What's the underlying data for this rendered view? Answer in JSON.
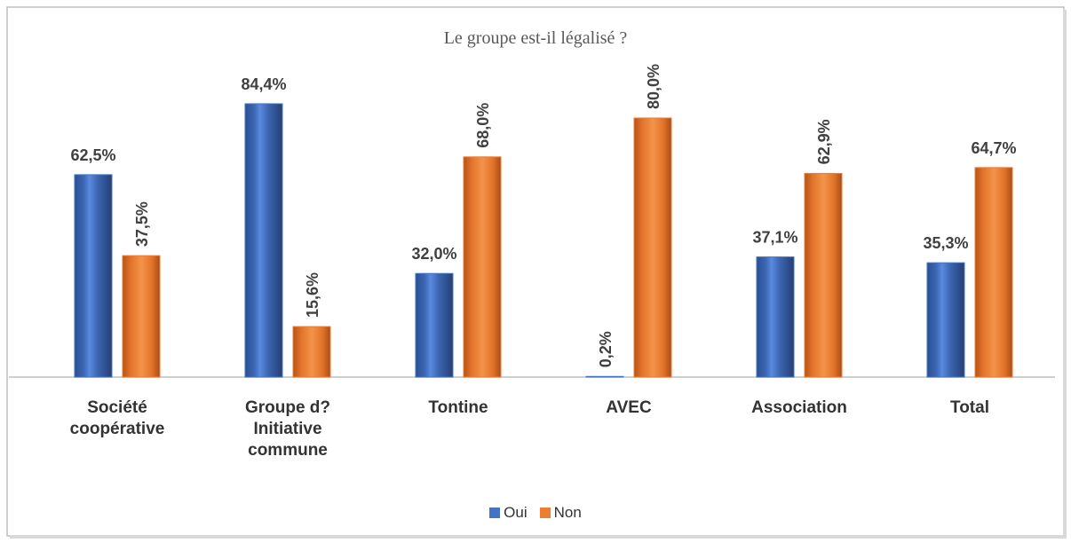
{
  "chart_data": {
    "type": "bar",
    "title": "Le groupe est-il légalisé ?",
    "categories": [
      "Société coopérative",
      "Groupe d?Initiative commune",
      "Tontine",
      "AVEC",
      "Association",
      "Total"
    ],
    "series": [
      {
        "name": "Oui",
        "color": "#4472c4",
        "values": [
          62.5,
          84.4,
          32.0,
          0.2,
          37.1,
          35.3
        ],
        "value_labels": [
          "62,5%",
          "84,4%",
          "32,0%",
          "0,2%",
          "37,1%",
          "35,3%"
        ]
      },
      {
        "name": "Non",
        "color": "#ed7d31",
        "values": [
          37.5,
          15.6,
          68.0,
          80.0,
          62.9,
          64.7
        ],
        "value_labels": [
          "37,5%",
          "15,6%",
          "68,0%",
          "80,0%",
          "62,9%",
          "64,7%"
        ]
      }
    ],
    "legend": "bottom"
  }
}
